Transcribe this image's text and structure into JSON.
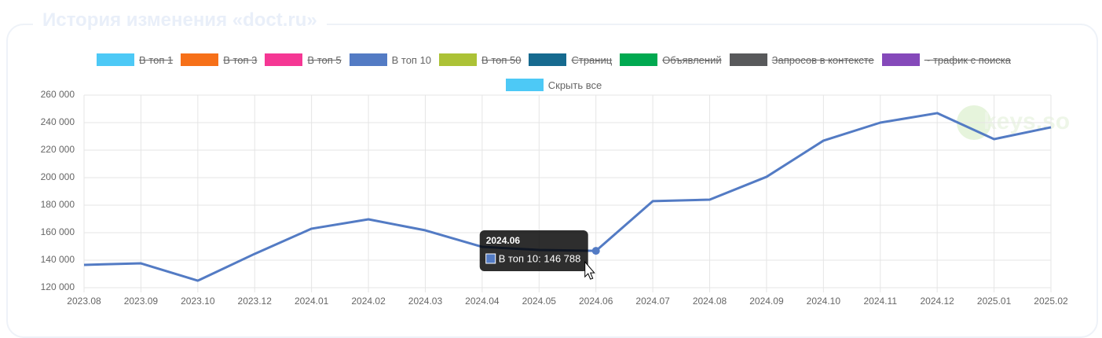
{
  "header": {
    "title": "История изменения «doct.ru»"
  },
  "chart_data": {
    "type": "line",
    "categories": [
      "2023.08",
      "2023.09",
      "2023.10",
      "2023.12",
      "2024.01",
      "2024.02",
      "2024.03",
      "2024.04",
      "2024.05",
      "2024.06",
      "2024.07",
      "2024.08",
      "2024.09",
      "2024.10",
      "2024.11",
      "2024.12",
      "2025.01",
      "2025.02"
    ],
    "series": [
      {
        "name": "В топ 1",
        "color": "#4dc9f6",
        "hidden": true
      },
      {
        "name": "В топ 3",
        "color": "#f67019",
        "hidden": true
      },
      {
        "name": "В топ 5",
        "color": "#f53794",
        "hidden": true
      },
      {
        "name": "В топ 10",
        "color": "#537bc4",
        "hidden": false,
        "values": [
          136600,
          137700,
          125100,
          144600,
          162900,
          169700,
          161700,
          149700,
          147400,
          146788,
          182900,
          184000,
          200600,
          226900,
          240000,
          246900,
          228000,
          236600
        ]
      },
      {
        "name": "В топ 50",
        "color": "#acc236",
        "hidden": true
      },
      {
        "name": "Страниц",
        "color": "#166a8f",
        "hidden": true
      },
      {
        "name": "Объявлений",
        "color": "#00a950",
        "hidden": true
      },
      {
        "name": "Запросов в контексте",
        "color": "#58595b",
        "hidden": true
      },
      {
        "name": "~ трафик с поиска",
        "color": "#8549ba",
        "hidden": true
      }
    ],
    "hide_all": {
      "label": "Скрыть все",
      "color": "#4dc9f6"
    },
    "ylim": [
      120000,
      260000
    ],
    "yticks": [
      {
        "value": 120000,
        "label": "120 000"
      },
      {
        "value": 140000,
        "label": "140 000"
      },
      {
        "value": 160000,
        "label": "160 000"
      },
      {
        "value": 180000,
        "label": "180 000"
      },
      {
        "value": 200000,
        "label": "200 000"
      },
      {
        "value": 220000,
        "label": "220 000"
      },
      {
        "value": 240000,
        "label": "240 000"
      },
      {
        "value": 260000,
        "label": "260 000"
      }
    ],
    "grid": true,
    "tooltip": {
      "index": 9,
      "series": 3,
      "text": "В топ 10: 146 788"
    },
    "watermark": "keys.so"
  }
}
